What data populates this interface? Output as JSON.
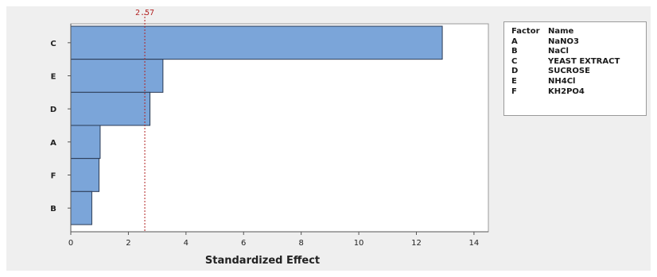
{
  "chart_data": {
    "type": "bar",
    "orientation": "horizontal",
    "categories": [
      "C",
      "E",
      "D",
      "A",
      "F",
      "B"
    ],
    "values": [
      12.9,
      3.2,
      2.75,
      1.02,
      0.98,
      0.73
    ],
    "title": "",
    "xlabel": "Standardized Effect",
    "ylabel": "",
    "xlim": [
      0,
      14.5
    ],
    "xticks": [
      "0",
      "2",
      "4",
      "6",
      "8",
      "10",
      "12",
      "14"
    ],
    "reference_line": {
      "value": 2.57,
      "label": "2.57",
      "color": "#b22222"
    },
    "bar_color": "#7ba5d9",
    "bar_edge_color": "#2a3a55",
    "background_color": "#efefef",
    "grid": false,
    "legend_position": "right-top"
  },
  "legend": {
    "header": {
      "code": "Factor",
      "name": "Name"
    },
    "rows": [
      {
        "code": "A",
        "name": "NaNO3"
      },
      {
        "code": "B",
        "name": "NaCl"
      },
      {
        "code": "C",
        "name": "YEAST EXTRACT"
      },
      {
        "code": "D",
        "name": "SUCROSE"
      },
      {
        "code": "E",
        "name": "NH4Cl"
      },
      {
        "code": "F",
        "name": "KH2PO4"
      }
    ]
  }
}
